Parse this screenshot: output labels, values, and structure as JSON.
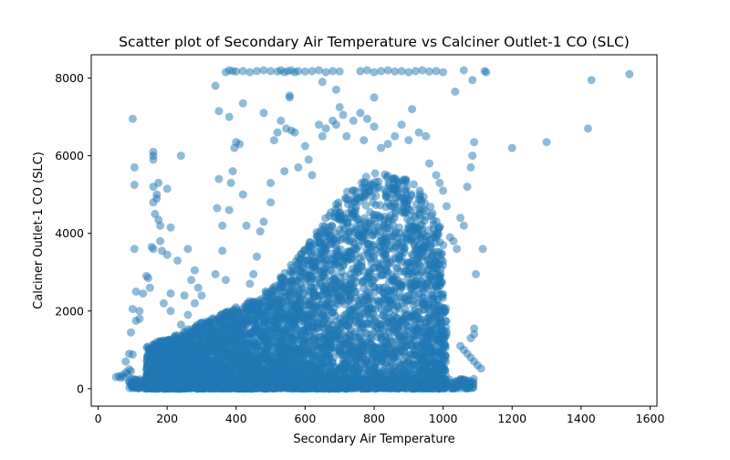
{
  "chart_data": {
    "type": "scatter",
    "title": "Scatter plot of Secondary Air Temperature vs Calciner Outlet-1 CO (SLC)",
    "xlabel": "Secondary Air Temperature",
    "ylabel": "Calciner Outlet-1 CO (SLC)",
    "xlim": [
      -20,
      1620
    ],
    "ylim": [
      -450,
      8600
    ],
    "x_ticks": [
      0,
      200,
      400,
      600,
      800,
      1000,
      1200,
      1400,
      1600
    ],
    "y_ticks": [
      0,
      2000,
      4000,
      6000,
      8000
    ],
    "x_tick_labels": [
      "0",
      "200",
      "400",
      "600",
      "800",
      "1000",
      "1200",
      "1400",
      "1600"
    ],
    "y_tick_labels": [
      "0",
      "2000",
      "4000",
      "6000",
      "8000"
    ],
    "grid": false,
    "legend": "none",
    "marker_color": "#1f77b4",
    "marker_alpha": 0.5,
    "series": [
      {
        "points": [
          [
            52,
            300
          ],
          [
            60,
            320
          ],
          [
            65,
            280
          ],
          [
            70,
            350
          ],
          [
            75,
            300
          ],
          [
            80,
            420
          ],
          [
            85,
            380
          ],
          [
            90,
            500
          ],
          [
            95,
            450
          ],
          [
            80,
            700
          ],
          [
            90,
            900
          ],
          [
            100,
            880
          ],
          [
            95,
            1450
          ],
          [
            100,
            2050
          ],
          [
            110,
            1750
          ],
          [
            120,
            1800
          ],
          [
            130,
            2450
          ],
          [
            140,
            2900
          ],
          [
            145,
            2850
          ],
          [
            150,
            2600
          ],
          [
            155,
            3650
          ],
          [
            160,
            3600
          ],
          [
            160,
            4800
          ],
          [
            165,
            4500
          ],
          [
            170,
            4900
          ],
          [
            170,
            5000
          ],
          [
            175,
            4350
          ],
          [
            180,
            4200
          ],
          [
            180,
            3800
          ],
          [
            185,
            3550
          ],
          [
            160,
            5900
          ],
          [
            160,
            6100
          ],
          [
            160,
            6000
          ],
          [
            160,
            5200
          ],
          [
            175,
            5300
          ],
          [
            200,
            5150
          ],
          [
            210,
            4150
          ],
          [
            200,
            3450
          ],
          [
            210,
            2450
          ],
          [
            230,
            3300
          ],
          [
            240,
            6000
          ],
          [
            250,
            2400
          ],
          [
            260,
            3600
          ],
          [
            270,
            2800
          ],
          [
            280,
            3050
          ],
          [
            290,
            2600
          ],
          [
            105,
            5250
          ],
          [
            105,
            5700
          ],
          [
            100,
            6950
          ],
          [
            105,
            3600
          ],
          [
            110,
            2500
          ],
          [
            120,
            2000
          ],
          [
            340,
            2950
          ],
          [
            345,
            4650
          ],
          [
            350,
            5400
          ],
          [
            350,
            7150
          ],
          [
            360,
            4200
          ],
          [
            360,
            3550
          ],
          [
            370,
            2800
          ],
          [
            380,
            4600
          ],
          [
            385,
            5300
          ],
          [
            390,
            5600
          ],
          [
            395,
            6200
          ],
          [
            400,
            6350
          ],
          [
            410,
            6300
          ],
          [
            380,
            7000
          ],
          [
            420,
            5000
          ],
          [
            430,
            4200
          ],
          [
            440,
            2700
          ],
          [
            450,
            2950
          ],
          [
            460,
            3400
          ],
          [
            470,
            4050
          ],
          [
            480,
            4300
          ],
          [
            480,
            7100
          ],
          [
            500,
            4800
          ],
          [
            500,
            5300
          ],
          [
            510,
            6400
          ],
          [
            520,
            6600
          ],
          [
            530,
            6900
          ],
          [
            540,
            5600
          ],
          [
            545,
            6700
          ],
          [
            560,
            6650
          ],
          [
            570,
            6600
          ],
          [
            580,
            5700
          ],
          [
            600,
            6250
          ],
          [
            610,
            5900
          ],
          [
            620,
            5500
          ],
          [
            640,
            6800
          ],
          [
            650,
            6500
          ],
          [
            660,
            6700
          ],
          [
            680,
            6900
          ],
          [
            690,
            6800
          ],
          [
            700,
            7250
          ],
          [
            710,
            7050
          ],
          [
            720,
            6500
          ],
          [
            740,
            6900
          ],
          [
            760,
            7100
          ],
          [
            770,
            6400
          ],
          [
            780,
            6950
          ],
          [
            800,
            6750
          ],
          [
            820,
            6200
          ],
          [
            840,
            6300
          ],
          [
            860,
            6500
          ],
          [
            880,
            6800
          ],
          [
            900,
            6400
          ],
          [
            910,
            7200
          ],
          [
            930,
            6600
          ],
          [
            950,
            6500
          ],
          [
            960,
            5800
          ],
          [
            980,
            5500
          ],
          [
            990,
            5300
          ],
          [
            1000,
            5100
          ],
          [
            1010,
            4700
          ],
          [
            1020,
            3900
          ],
          [
            1030,
            3800
          ],
          [
            1040,
            3600
          ],
          [
            1050,
            4400
          ],
          [
            1060,
            4200
          ],
          [
            1070,
            5200
          ],
          [
            1080,
            5700
          ],
          [
            1085,
            6000
          ],
          [
            1090,
            6350
          ],
          [
            1095,
            2950
          ],
          [
            1115,
            3600
          ],
          [
            1090,
            1550
          ],
          [
            1090,
            1400
          ],
          [
            1080,
            1300
          ],
          [
            1100,
            600
          ],
          [
            1110,
            520
          ],
          [
            1090,
            700
          ],
          [
            1080,
            800
          ],
          [
            1070,
            900
          ],
          [
            1060,
            1000
          ],
          [
            1050,
            1100
          ],
          [
            370,
            8150
          ],
          [
            380,
            8200
          ],
          [
            390,
            8180
          ],
          [
            400,
            8170
          ],
          [
            420,
            8180
          ],
          [
            440,
            8150
          ],
          [
            460,
            8180
          ],
          [
            480,
            8200
          ],
          [
            500,
            8180
          ],
          [
            520,
            8170
          ],
          [
            530,
            8200
          ],
          [
            540,
            8150
          ],
          [
            550,
            8180
          ],
          [
            560,
            8200
          ],
          [
            570,
            8150
          ],
          [
            580,
            8180
          ],
          [
            600,
            8170
          ],
          [
            620,
            8180
          ],
          [
            640,
            8200
          ],
          [
            660,
            8150
          ],
          [
            680,
            8180
          ],
          [
            700,
            8170
          ],
          [
            760,
            8180
          ],
          [
            780,
            8200
          ],
          [
            800,
            8150
          ],
          [
            820,
            8180
          ],
          [
            840,
            8200
          ],
          [
            860,
            8170
          ],
          [
            880,
            8180
          ],
          [
            900,
            8150
          ],
          [
            920,
            8180
          ],
          [
            940,
            8200
          ],
          [
            960,
            8170
          ],
          [
            980,
            8180
          ],
          [
            1000,
            8150
          ],
          [
            1060,
            8200
          ],
          [
            1120,
            8180
          ],
          [
            1125,
            8150
          ],
          [
            340,
            7800
          ],
          [
            420,
            7350
          ],
          [
            555,
            7550
          ],
          [
            555,
            7500
          ],
          [
            650,
            7900
          ],
          [
            690,
            7700
          ],
          [
            800,
            7500
          ],
          [
            1035,
            7650
          ],
          [
            1085,
            7950
          ],
          [
            1200,
            6200
          ],
          [
            1300,
            6350
          ],
          [
            1420,
            6700
          ],
          [
            1430,
            7950
          ],
          [
            1540,
            8100
          ],
          [
            450,
            2000
          ],
          [
            460,
            1500
          ],
          [
            480,
            900
          ],
          [
            520,
            1200
          ],
          [
            560,
            400
          ],
          [
            600,
            350
          ],
          [
            620,
            150
          ],
          [
            200,
            600
          ],
          [
            250,
            700
          ],
          [
            300,
            500
          ],
          [
            350,
            800
          ],
          [
            260,
            1900
          ],
          [
            280,
            2200
          ],
          [
            300,
            1700
          ],
          [
            330,
            1200
          ],
          [
            300,
            2400
          ],
          [
            210,
            1000
          ],
          [
            230,
            1300
          ],
          [
            190,
            2200
          ],
          [
            210,
            2000
          ],
          [
            240,
            1650
          ]
        ],
        "dense_cluster": {
          "x_range": [
            140,
            1010
          ],
          "y_bottom": 0,
          "y_top_profile": [
            [
              140,
              1100
            ],
            [
              200,
              1300
            ],
            [
              250,
              1500
            ],
            [
              300,
              1700
            ],
            [
              350,
              1900
            ],
            [
              400,
              2100
            ],
            [
              450,
              2300
            ],
            [
              500,
              2600
            ],
            [
              550,
              3100
            ],
            [
              600,
              3600
            ],
            [
              650,
              4300
            ],
            [
              700,
              4900
            ],
            [
              750,
              5300
            ],
            [
              800,
              5600
            ],
            [
              850,
              5500
            ],
            [
              900,
              5400
            ],
            [
              950,
              5000
            ],
            [
              1000,
              4000
            ],
            [
              1010,
              1800
            ]
          ]
        }
      }
    ]
  }
}
